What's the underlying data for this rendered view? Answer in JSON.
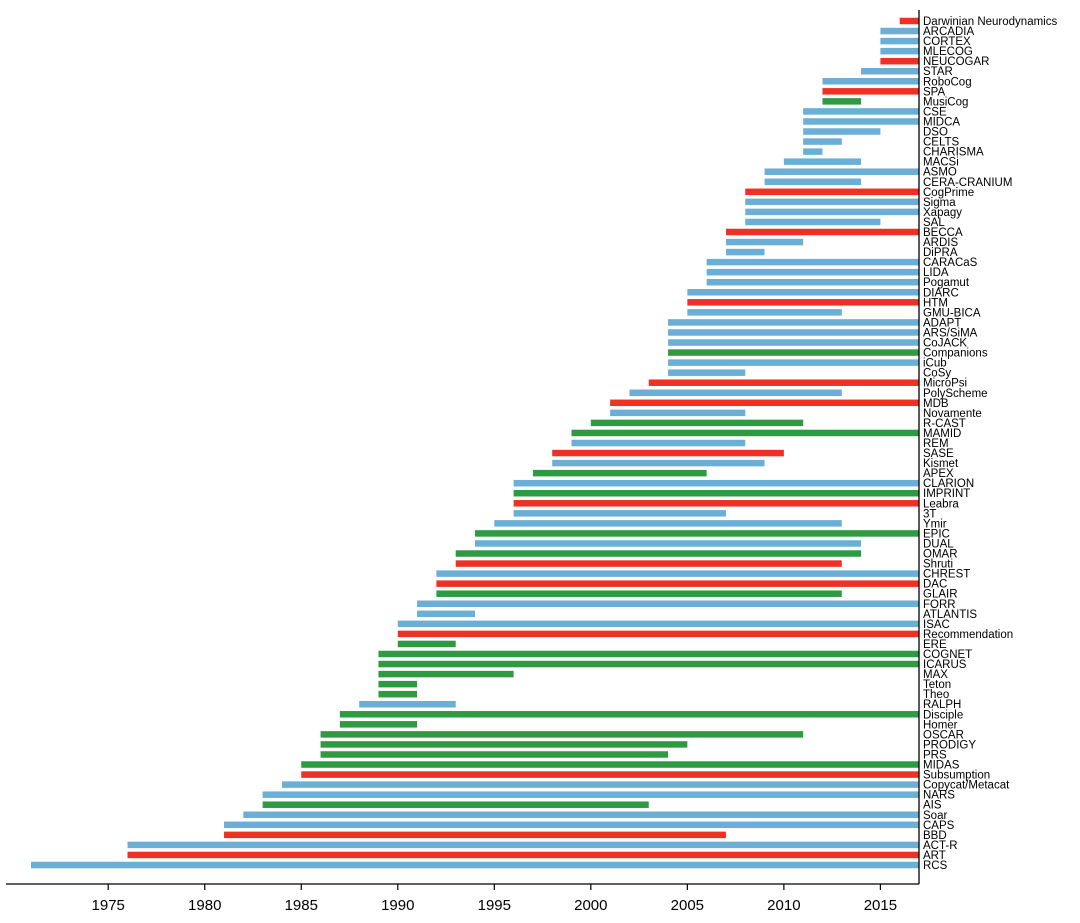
{
  "chart_data": {
    "type": "bar",
    "orientation": "horizontal-timeline",
    "title": "",
    "xlabel": "",
    "ylabel": "",
    "xlim": [
      1971,
      2017
    ],
    "xticks": [
      1975,
      1980,
      1985,
      1990,
      1995,
      2000,
      2005,
      2010,
      2015
    ],
    "colors": {
      "blue": "#6baed6",
      "red": "#ee3124",
      "green": "#2e9b43",
      "axis": "#000000"
    },
    "bars": [
      {
        "name": "Darwinian Neurodynamics",
        "start": 2016,
        "end": 2017,
        "color": "red"
      },
      {
        "name": "ARCADIA",
        "start": 2015,
        "end": 2017,
        "color": "blue"
      },
      {
        "name": "CORTEX",
        "start": 2015,
        "end": 2017,
        "color": "blue"
      },
      {
        "name": "MLECOG",
        "start": 2015,
        "end": 2017,
        "color": "blue"
      },
      {
        "name": "NEUCOGAR",
        "start": 2015,
        "end": 2017,
        "color": "red"
      },
      {
        "name": "STAR",
        "start": 2014,
        "end": 2017,
        "color": "blue"
      },
      {
        "name": "RoboCog",
        "start": 2012,
        "end": 2017,
        "color": "blue"
      },
      {
        "name": "SPA",
        "start": 2012,
        "end": 2017,
        "color": "red"
      },
      {
        "name": "MusiCog",
        "start": 2012,
        "end": 2014,
        "color": "green"
      },
      {
        "name": "CSE",
        "start": 2011,
        "end": 2017,
        "color": "blue"
      },
      {
        "name": "MIDCA",
        "start": 2011,
        "end": 2017,
        "color": "blue"
      },
      {
        "name": "DSO",
        "start": 2011,
        "end": 2015,
        "color": "blue"
      },
      {
        "name": "CELTS",
        "start": 2011,
        "end": 2013,
        "color": "blue"
      },
      {
        "name": "CHARISMA",
        "start": 2011,
        "end": 2012,
        "color": "blue"
      },
      {
        "name": "MACSi",
        "start": 2010,
        "end": 2014,
        "color": "blue"
      },
      {
        "name": "ASMO",
        "start": 2009,
        "end": 2017,
        "color": "blue"
      },
      {
        "name": "CERA-CRANIUM",
        "start": 2009,
        "end": 2014,
        "color": "blue"
      },
      {
        "name": "CogPrime",
        "start": 2008,
        "end": 2017,
        "color": "red"
      },
      {
        "name": "Sigma",
        "start": 2008,
        "end": 2017,
        "color": "blue"
      },
      {
        "name": "Xapagy",
        "start": 2008,
        "end": 2017,
        "color": "blue"
      },
      {
        "name": "SAL",
        "start": 2008,
        "end": 2015,
        "color": "blue"
      },
      {
        "name": "BECCA",
        "start": 2007,
        "end": 2017,
        "color": "red"
      },
      {
        "name": "ARDIS",
        "start": 2007,
        "end": 2011,
        "color": "blue"
      },
      {
        "name": "DiPRA",
        "start": 2007,
        "end": 2009,
        "color": "blue"
      },
      {
        "name": "CARACaS",
        "start": 2006,
        "end": 2017,
        "color": "blue"
      },
      {
        "name": "LIDA",
        "start": 2006,
        "end": 2017,
        "color": "blue"
      },
      {
        "name": "Pogamut",
        "start": 2006,
        "end": 2017,
        "color": "blue"
      },
      {
        "name": "DIARC",
        "start": 2005,
        "end": 2017,
        "color": "blue"
      },
      {
        "name": "HTM",
        "start": 2005,
        "end": 2017,
        "color": "red"
      },
      {
        "name": "GMU-BICA",
        "start": 2005,
        "end": 2013,
        "color": "blue"
      },
      {
        "name": "ADAPT",
        "start": 2004,
        "end": 2017,
        "color": "blue"
      },
      {
        "name": "ARS/SiMA",
        "start": 2004,
        "end": 2017,
        "color": "blue"
      },
      {
        "name": "CoJACK",
        "start": 2004,
        "end": 2017,
        "color": "blue"
      },
      {
        "name": "Companions",
        "start": 2004,
        "end": 2017,
        "color": "green"
      },
      {
        "name": "iCub",
        "start": 2004,
        "end": 2017,
        "color": "blue"
      },
      {
        "name": "CoSy",
        "start": 2004,
        "end": 2008,
        "color": "blue"
      },
      {
        "name": "MicroPsi",
        "start": 2003,
        "end": 2017,
        "color": "red"
      },
      {
        "name": "PolyScheme",
        "start": 2002,
        "end": 2013,
        "color": "blue"
      },
      {
        "name": "MDB",
        "start": 2001,
        "end": 2017,
        "color": "red"
      },
      {
        "name": "Novamente",
        "start": 2001,
        "end": 2008,
        "color": "blue"
      },
      {
        "name": "R-CAST",
        "start": 2000,
        "end": 2011,
        "color": "green"
      },
      {
        "name": "MAMID",
        "start": 1999,
        "end": 2017,
        "color": "green"
      },
      {
        "name": "REM",
        "start": 1999,
        "end": 2008,
        "color": "blue"
      },
      {
        "name": "SASE",
        "start": 1998,
        "end": 2010,
        "color": "red"
      },
      {
        "name": "Kismet",
        "start": 1998,
        "end": 2009,
        "color": "blue"
      },
      {
        "name": "APEX",
        "start": 1997,
        "end": 2006,
        "color": "green"
      },
      {
        "name": "CLARION",
        "start": 1996,
        "end": 2017,
        "color": "blue"
      },
      {
        "name": "IMPRINT",
        "start": 1996,
        "end": 2017,
        "color": "green"
      },
      {
        "name": "Leabra",
        "start": 1996,
        "end": 2017,
        "color": "red"
      },
      {
        "name": "3T",
        "start": 1996,
        "end": 2007,
        "color": "blue"
      },
      {
        "name": "Ymir",
        "start": 1995,
        "end": 2013,
        "color": "blue"
      },
      {
        "name": "EPIC",
        "start": 1994,
        "end": 2017,
        "color": "green"
      },
      {
        "name": "DUAL",
        "start": 1994,
        "end": 2014,
        "color": "blue"
      },
      {
        "name": "OMAR",
        "start": 1993,
        "end": 2014,
        "color": "green"
      },
      {
        "name": "Shruti",
        "start": 1993,
        "end": 2013,
        "color": "red"
      },
      {
        "name": "CHREST",
        "start": 1992,
        "end": 2017,
        "color": "blue"
      },
      {
        "name": "DAC",
        "start": 1992,
        "end": 2017,
        "color": "red"
      },
      {
        "name": "GLAIR",
        "start": 1992,
        "end": 2013,
        "color": "green"
      },
      {
        "name": "FORR",
        "start": 1991,
        "end": 2017,
        "color": "blue"
      },
      {
        "name": "ATLANTIS",
        "start": 1991,
        "end": 1994,
        "color": "blue"
      },
      {
        "name": "ISAC",
        "start": 1990,
        "end": 2017,
        "color": "blue"
      },
      {
        "name": "Recommendation",
        "start": 1990,
        "end": 2017,
        "color": "red"
      },
      {
        "name": "ERE",
        "start": 1990,
        "end": 1993,
        "color": "green"
      },
      {
        "name": "COGNET",
        "start": 1989,
        "end": 2017,
        "color": "green"
      },
      {
        "name": "ICARUS",
        "start": 1989,
        "end": 2017,
        "color": "green"
      },
      {
        "name": "MAX",
        "start": 1989,
        "end": 1996,
        "color": "green"
      },
      {
        "name": "Teton",
        "start": 1989,
        "end": 1991,
        "color": "green"
      },
      {
        "name": "Theo",
        "start": 1989,
        "end": 1991,
        "color": "green"
      },
      {
        "name": "RALPH",
        "start": 1988,
        "end": 1993,
        "color": "blue"
      },
      {
        "name": "Disciple",
        "start": 1987,
        "end": 2017,
        "color": "green"
      },
      {
        "name": "Homer",
        "start": 1987,
        "end": 1991,
        "color": "green"
      },
      {
        "name": "OSCAR",
        "start": 1986,
        "end": 2011,
        "color": "green"
      },
      {
        "name": "PRODIGY",
        "start": 1986,
        "end": 2005,
        "color": "green"
      },
      {
        "name": "PRS",
        "start": 1986,
        "end": 2004,
        "color": "green"
      },
      {
        "name": "MIDAS",
        "start": 1985,
        "end": 2017,
        "color": "green"
      },
      {
        "name": "Subsumption",
        "start": 1985,
        "end": 2017,
        "color": "red"
      },
      {
        "name": "Copycat/Metacat",
        "start": 1984,
        "end": 2017,
        "color": "blue"
      },
      {
        "name": "NARS",
        "start": 1983,
        "end": 2017,
        "color": "blue"
      },
      {
        "name": "AIS",
        "start": 1983,
        "end": 2003,
        "color": "green"
      },
      {
        "name": "Soar",
        "start": 1982,
        "end": 2017,
        "color": "blue"
      },
      {
        "name": "CAPS",
        "start": 1981,
        "end": 2017,
        "color": "blue"
      },
      {
        "name": "BBD",
        "start": 1981,
        "end": 2007,
        "color": "red"
      },
      {
        "name": "ACT-R",
        "start": 1976,
        "end": 2017,
        "color": "blue"
      },
      {
        "name": "ART",
        "start": 1976,
        "end": 2017,
        "color": "red"
      },
      {
        "name": "RCS",
        "start": 1971,
        "end": 2017,
        "color": "blue"
      }
    ]
  }
}
